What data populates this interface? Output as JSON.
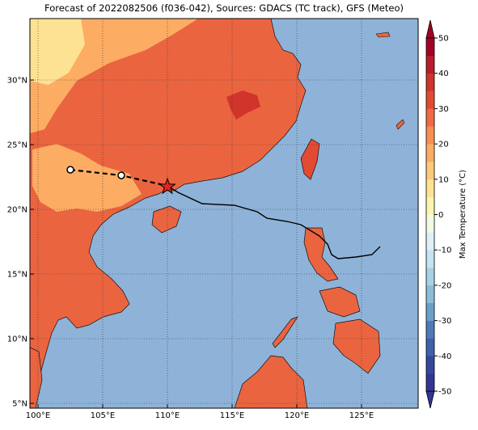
{
  "map": {
    "title": "Forecast of 2022082506 (f036-042), Sources: GDACS (TC track), GFS (Meteo)",
    "lon_ticks": [
      {
        "value": 100,
        "label": "100°E"
      },
      {
        "value": 105,
        "label": "105°E"
      },
      {
        "value": 110,
        "label": "110°E"
      },
      {
        "value": 115,
        "label": "115°E"
      },
      {
        "value": 120,
        "label": "120°E"
      },
      {
        "value": 125,
        "label": "125°E"
      }
    ],
    "lat_ticks": [
      {
        "value": 5,
        "label": "5°N"
      },
      {
        "value": 10,
        "label": "10°N"
      },
      {
        "value": 15,
        "label": "15°N"
      },
      {
        "value": 20,
        "label": "20°N"
      },
      {
        "value": 25,
        "label": "25°N"
      },
      {
        "value": 30,
        "label": "30°N"
      }
    ],
    "colorbar": {
      "label": "Max Temperature (°C)",
      "ticks": [
        -50,
        -40,
        -30,
        -20,
        -10,
        0,
        10,
        20,
        30,
        40,
        50
      ],
      "colors": [
        "#313695",
        "#36479e",
        "#4061aa",
        "#4d7bb8",
        "#6a9fca",
        "#8bbddb",
        "#a7d2e6",
        "#c4e4ef",
        "#ddf1f7",
        "#f2fae3",
        "#fef4b0",
        "#fee293",
        "#fdc879",
        "#fdac64",
        "#f98e52",
        "#f06b43",
        "#e34a33",
        "#d0342a",
        "#b81d2b",
        "#a50026"
      ]
    }
  }
}
